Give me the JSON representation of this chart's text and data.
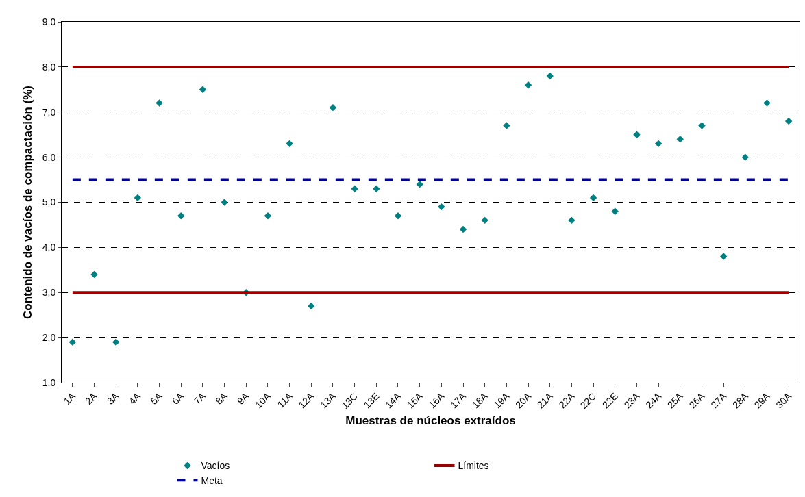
{
  "chart_data": {
    "type": "scatter",
    "xlabel": "Muestras de núcleos extraídos",
    "ylabel": "Contenido de vacíos de compactación (%)",
    "categories": [
      "1A",
      "2A",
      "3A",
      "4A",
      "5A",
      "6A",
      "7A",
      "8A",
      "9A",
      "10A",
      "11A",
      "12A",
      "13A",
      "13C",
      "13E",
      "14A",
      "15A",
      "16A",
      "17A",
      "18A",
      "19A",
      "20A",
      "21A",
      "22A",
      "22C",
      "22E",
      "23A",
      "24A",
      "25A",
      "26A",
      "27A",
      "28A",
      "29A",
      "30A"
    ],
    "series": [
      {
        "name": "Vacíos",
        "color": "#008080",
        "marker": "diamond",
        "values": [
          1.9,
          3.4,
          1.9,
          5.1,
          7.2,
          4.7,
          7.5,
          5.0,
          3.0,
          4.7,
          6.3,
          2.7,
          7.1,
          5.3,
          5.3,
          4.7,
          5.4,
          4.9,
          4.4,
          4.6,
          6.7,
          7.6,
          7.8,
          4.6,
          5.1,
          4.8,
          6.5,
          6.3,
          6.4,
          6.7,
          3.8,
          6.0,
          7.2,
          6.8
        ]
      },
      {
        "name": "Límites",
        "type": "line",
        "color": "#990000",
        "marker": "none",
        "line_style": "solid",
        "values": [
          8,
          8,
          8,
          8,
          8,
          8,
          8,
          8,
          8,
          8,
          8,
          8,
          8,
          8,
          8,
          8,
          8,
          8,
          8,
          8,
          8,
          8,
          8,
          8,
          8,
          8,
          8,
          8,
          8,
          8,
          8,
          8,
          8,
          8
        ]
      },
      {
        "type": "line",
        "color": "#990000",
        "marker": "none",
        "line_style": "solid",
        "values": [
          3,
          3,
          3,
          3,
          3,
          3,
          3,
          3,
          3,
          3,
          3,
          3,
          3,
          3,
          3,
          3,
          3,
          3,
          3,
          3,
          3,
          3,
          3,
          3,
          3,
          3,
          3,
          3,
          3,
          3,
          3,
          3,
          3,
          3
        ]
      },
      {
        "name": "Meta",
        "type": "line",
        "color": "#000099",
        "marker": "none",
        "line_style": "dashed",
        "values": [
          5.5,
          5.5,
          5.5,
          5.5,
          5.5,
          5.5,
          5.5,
          5.5,
          5.5,
          5.5,
          5.5,
          5.5,
          5.5,
          5.5,
          5.5,
          5.5,
          5.5,
          5.5,
          5.5,
          5.5,
          5.5,
          5.5,
          5.5,
          5.5,
          5.5,
          5.5,
          5.5,
          5.5,
          5.5,
          5.5,
          5.5,
          5.5,
          5.5,
          5.5
        ]
      }
    ],
    "ylim": [
      1,
      9
    ],
    "yticks": [
      {
        "value": 1,
        "label": "1,0"
      },
      {
        "value": 2,
        "label": "2,0"
      },
      {
        "value": 3,
        "label": "3,0"
      },
      {
        "value": 4,
        "label": "4,0"
      },
      {
        "value": 5,
        "label": "5,0"
      },
      {
        "value": 6,
        "label": "6,0"
      },
      {
        "value": 7,
        "label": "7,0"
      },
      {
        "value": 8,
        "label": "8,0"
      },
      {
        "value": 9,
        "label": "9,0"
      }
    ],
    "grid": "y",
    "legend": "bottom"
  }
}
